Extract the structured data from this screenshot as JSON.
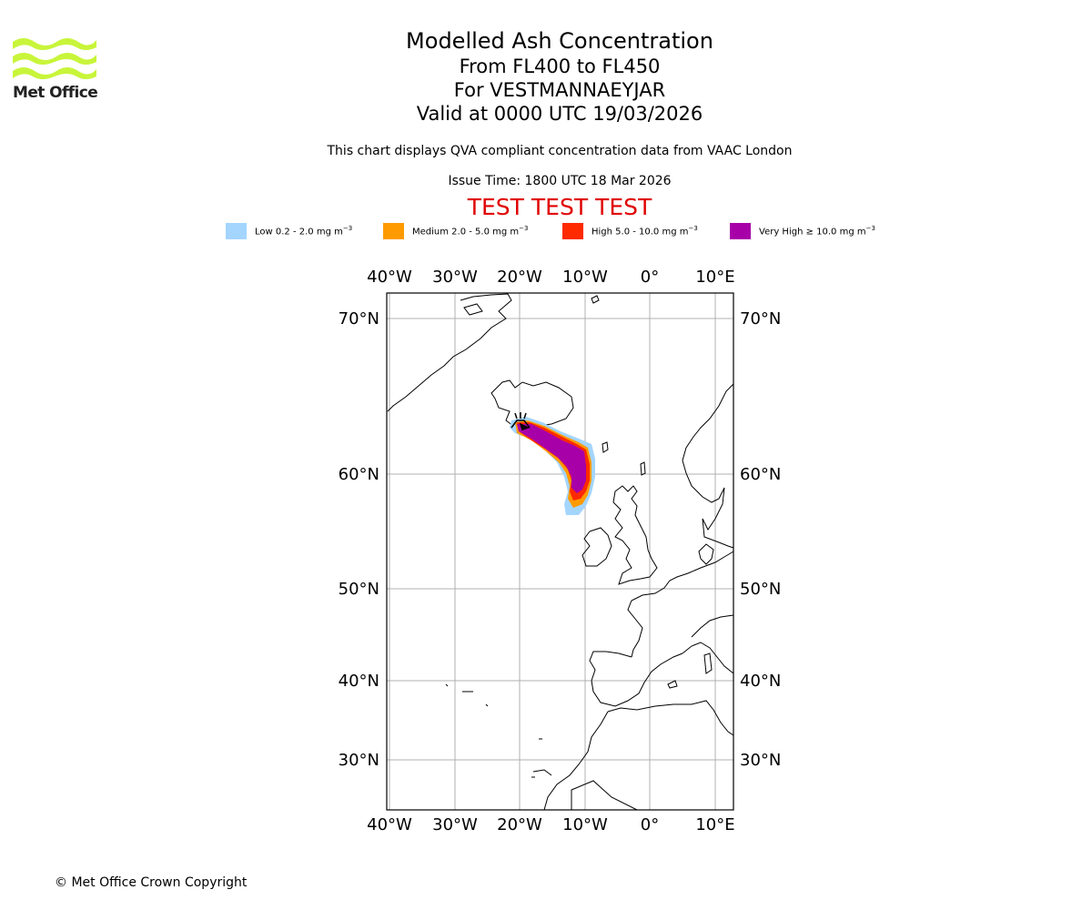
{
  "logo": {
    "text": "Met Office",
    "color": "#c8f53a"
  },
  "title": {
    "line1": "Modelled Ash Concentration",
    "line2": "From FL400 to FL450",
    "line3": "For VESTMANNAEYJAR",
    "line4": "Valid at 0000 UTC 19/03/2026"
  },
  "description": "This chart displays QVA compliant concentration data from VAAC London",
  "issue_time": "Issue Time: 1800 UTC 18 Mar 2026",
  "test_banner": "TEST TEST TEST",
  "legend": [
    {
      "label": "Low 0.2 - 2.0 mg m",
      "unit_exp": "−3",
      "color": "#a3d5ff"
    },
    {
      "label": "Medium 2.0 - 5.0 mg m",
      "unit_exp": "−3",
      "color": "#ff9a00"
    },
    {
      "label": "High 5.0 - 10.0 mg m",
      "unit_exp": "−3",
      "color": "#ff2a00"
    },
    {
      "label": "Very High  ≥  10.0 mg m",
      "unit_exp": "−3",
      "color": "#a800a8"
    }
  ],
  "map": {
    "lon_labels": [
      "40°W",
      "30°W",
      "20°W",
      "10°W",
      "0°",
      "10°E"
    ],
    "lat_labels": [
      "70°N",
      "60°N",
      "50°N",
      "40°N",
      "30°N"
    ]
  },
  "copyright": "© Met Office Crown Copyright"
}
